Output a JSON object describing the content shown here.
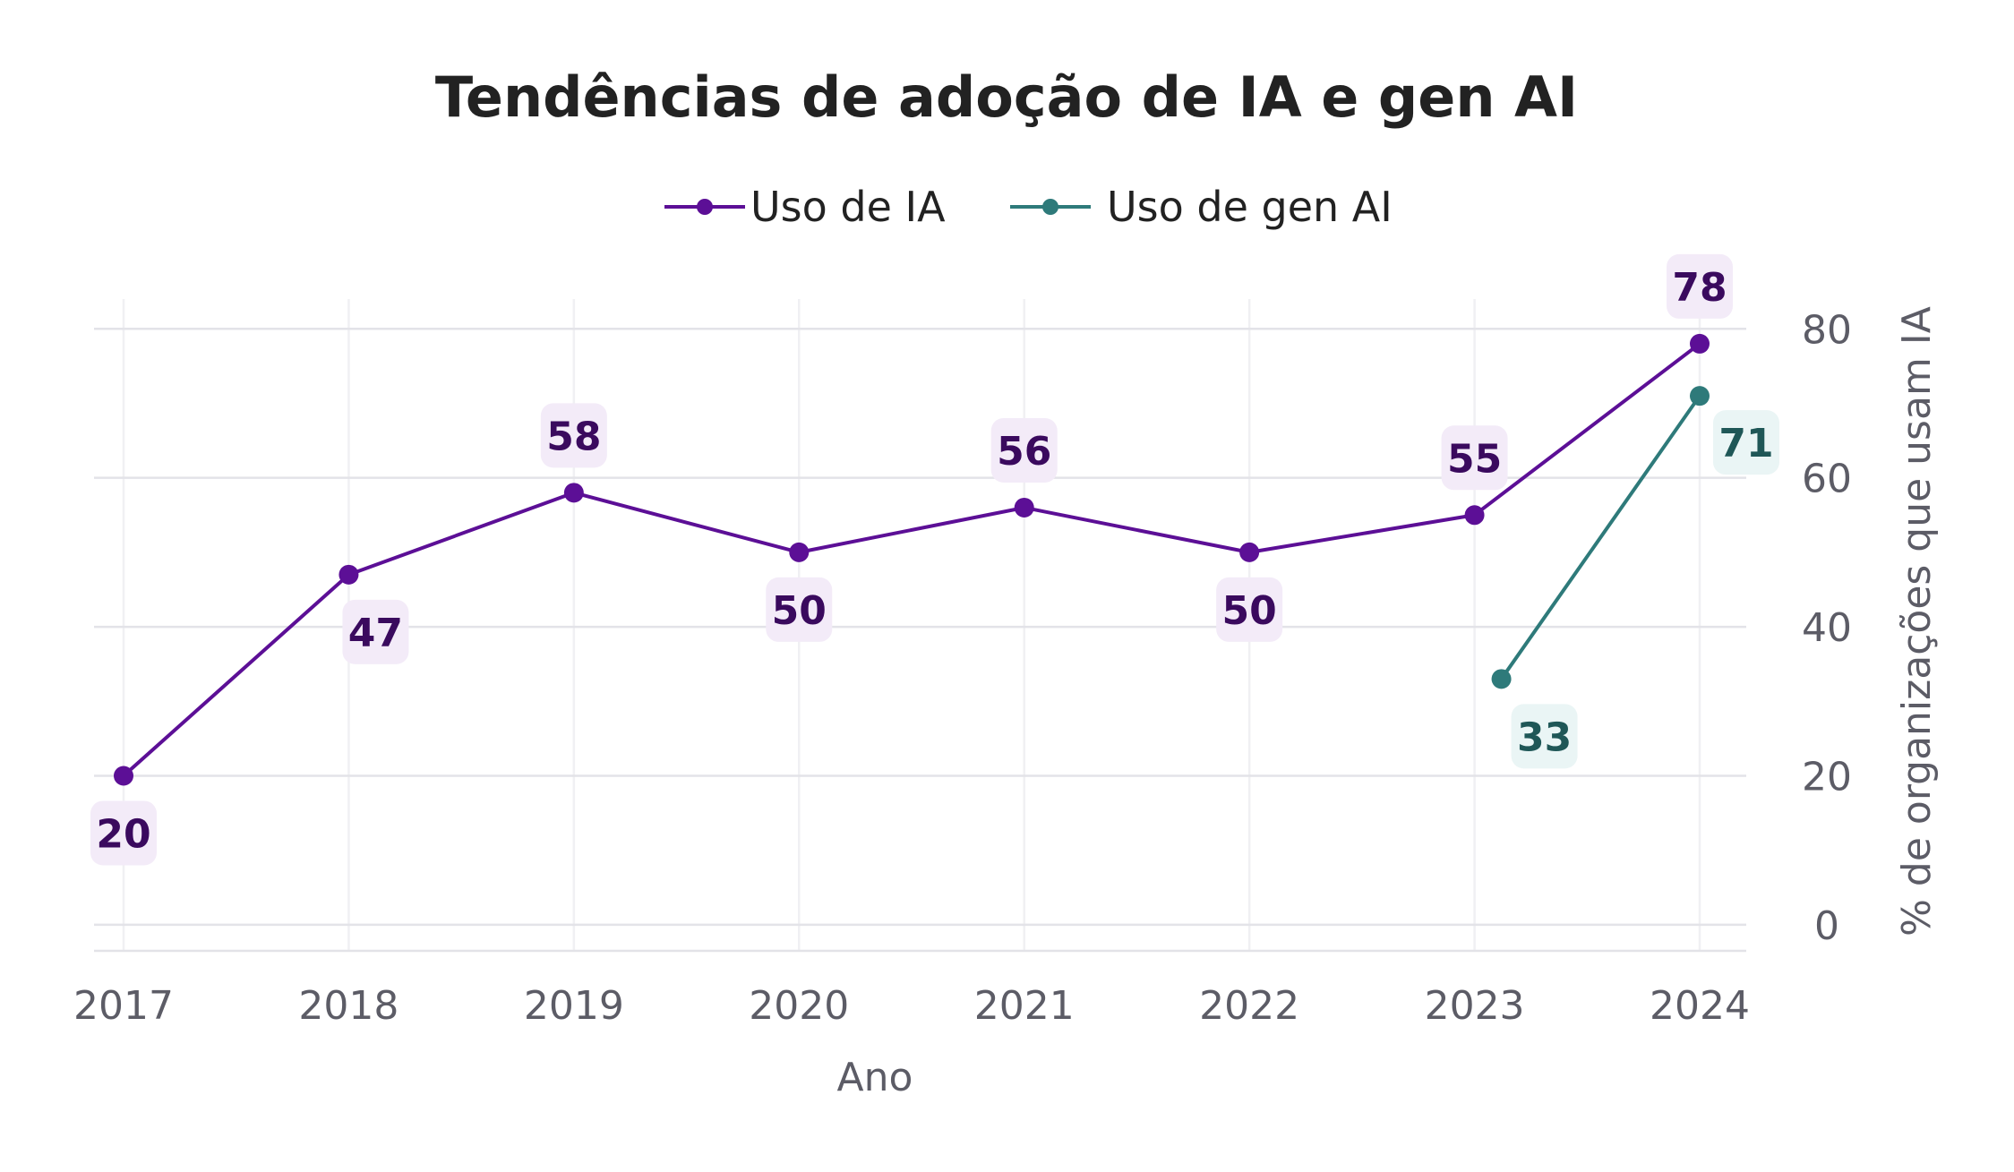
{
  "chart_data": {
    "type": "line",
    "title": "Tendências de adoção de IA e gen AI",
    "xlabel": "Ano",
    "ylabel": "% de organizações que usam IA",
    "categories": [
      "2017",
      "2018",
      "2019",
      "2020",
      "2021",
      "2022",
      "2023",
      "2024"
    ],
    "ylim": [
      0,
      80
    ],
    "yticks": [
      0,
      20,
      40,
      60,
      80
    ],
    "y_axis_side": "right",
    "legend_position": "top-center",
    "grid": true,
    "series": [
      {
        "name": "Uso de IA",
        "color": "#5c0f96",
        "label_text_color": "#3a0a5e",
        "label_bg_color": "#f3ebf8",
        "points": [
          {
            "x": "2017",
            "y": 20,
            "label": "20",
            "label_side": "below"
          },
          {
            "x": "2018",
            "y": 47,
            "label": "47",
            "label_side": "below"
          },
          {
            "x": "2019",
            "y": 58,
            "label": "58",
            "label_side": "above"
          },
          {
            "x": "2020",
            "y": 50,
            "label": "50",
            "label_side": "below"
          },
          {
            "x": "2021",
            "y": 56,
            "label": "56",
            "label_side": "above"
          },
          {
            "x": "2022",
            "y": 50,
            "label": "50",
            "label_side": "below"
          },
          {
            "x": "2023",
            "y": 55,
            "label": "55",
            "label_side": "above"
          },
          {
            "x": "2024",
            "y": 78,
            "label": "78",
            "label_side": "above"
          }
        ]
      },
      {
        "name": "Uso de gen AI",
        "color": "#2e7a7a",
        "label_text_color": "#1f5757",
        "label_bg_color": "#eaf5f5",
        "points": [
          {
            "x": "2023",
            "y": 33,
            "label": "33",
            "label_side": "below"
          },
          {
            "x": "2024",
            "y": 71,
            "label": "71",
            "label_side": "right"
          }
        ]
      }
    ]
  }
}
